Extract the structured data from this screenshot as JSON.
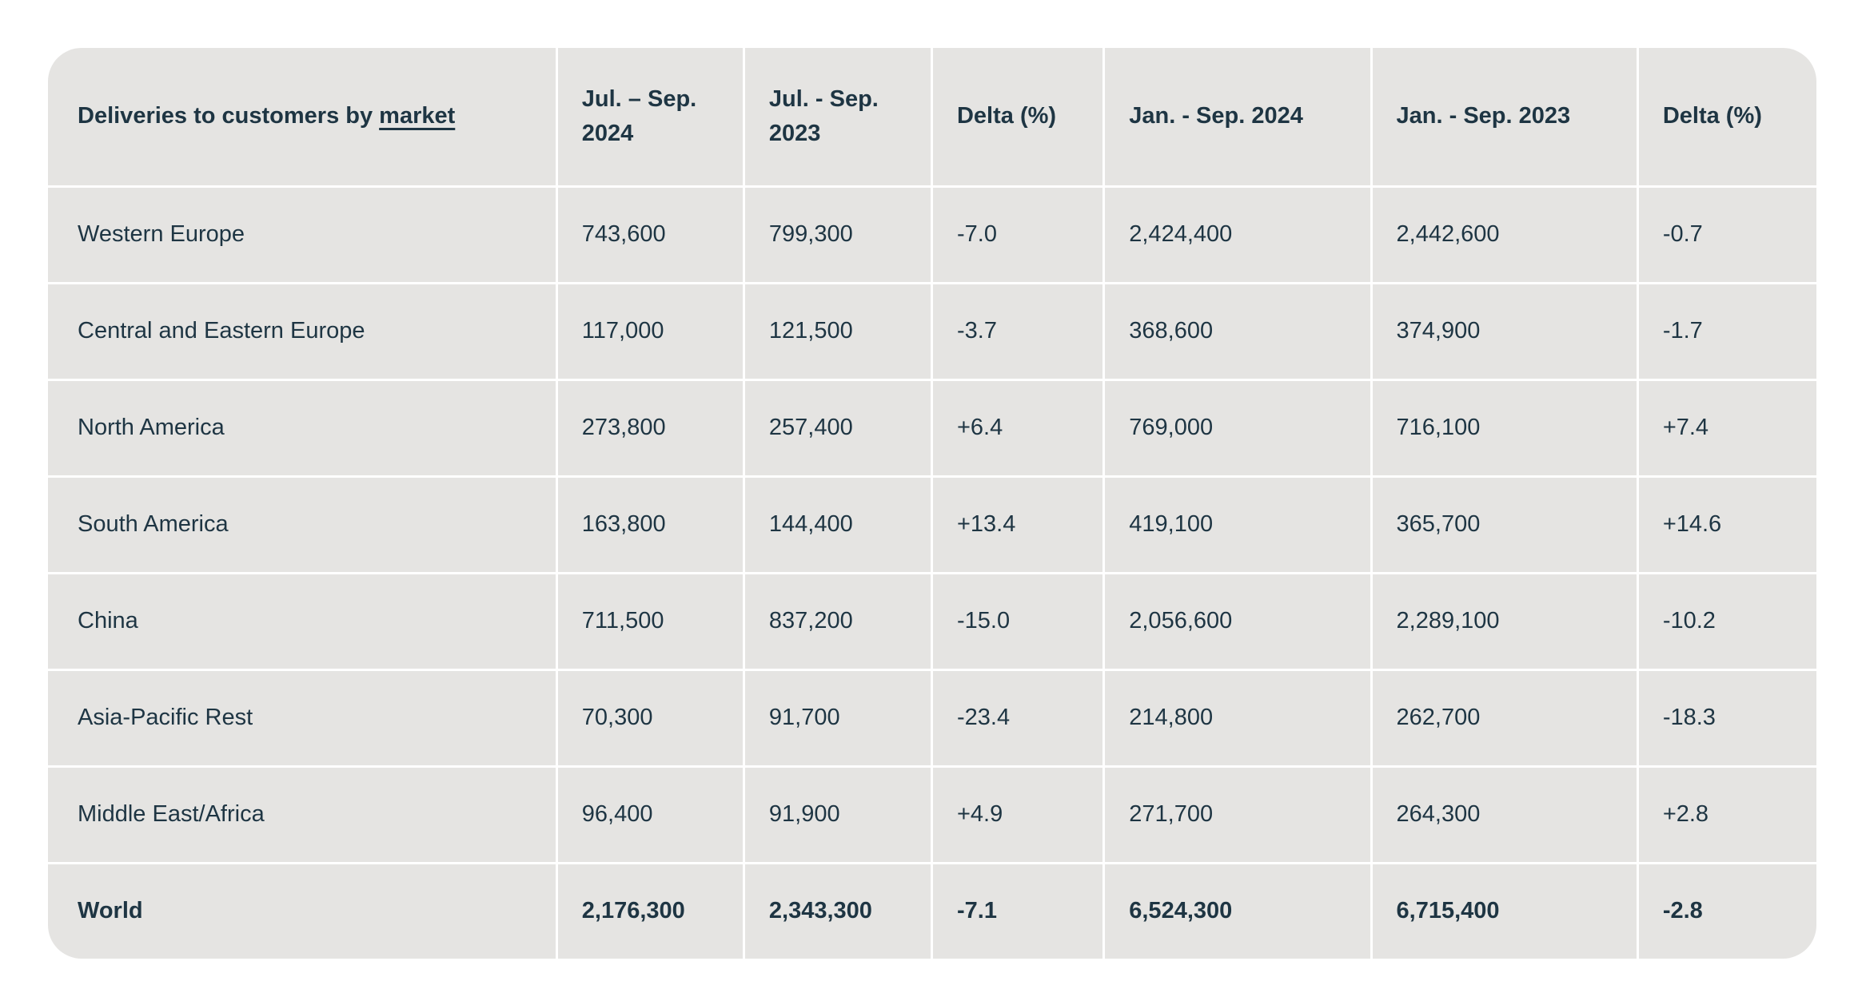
{
  "table": {
    "title": {
      "prefix": "Deliveries to customers by ",
      "glossary_term": "market"
    },
    "columns": [
      "Jul. – Sep. 2024",
      "Jul. - Sep. 2023",
      "Delta (%)",
      "Jan. - Sep. 2024",
      "Jan. - Sep. 2023",
      "Delta (%)"
    ],
    "rows": [
      {
        "market": "Western Europe",
        "values": [
          "743,600",
          "799,300",
          "-7.0",
          "2,424,400",
          "2,442,600",
          "-0.7"
        ]
      },
      {
        "market": "Central and Eastern Europe",
        "values": [
          "117,000",
          "121,500",
          "-3.7",
          "368,600",
          "374,900",
          "-1.7"
        ]
      },
      {
        "market": "North America",
        "values": [
          "273,800",
          "257,400",
          "+6.4",
          "769,000",
          "716,100",
          "+7.4"
        ]
      },
      {
        "market": "South America",
        "values": [
          "163,800",
          "144,400",
          "+13.4",
          "419,100",
          "365,700",
          "+14.6"
        ]
      },
      {
        "market": "China",
        "values": [
          "711,500",
          "837,200",
          "-15.0",
          "2,056,600",
          "2,289,100",
          "-10.2"
        ]
      },
      {
        "market": "Asia-Pacific Rest",
        "values": [
          "70,300",
          "91,700",
          "-23.4",
          "214,800",
          "262,700",
          "-18.3"
        ]
      },
      {
        "market": "Middle East/Africa",
        "values": [
          "96,400",
          "91,900",
          "+4.9",
          "271,700",
          "264,300",
          "+2.8"
        ]
      },
      {
        "market": "World",
        "values": [
          "2,176,300",
          "2,343,300",
          "-7.1",
          "6,524,300",
          "6,715,400",
          "-2.8"
        ]
      }
    ],
    "colors": {
      "cell_background": "#e5e4e2",
      "divider": "#ffffff",
      "text": "#1e3543",
      "page_background": "#ffffff"
    }
  }
}
